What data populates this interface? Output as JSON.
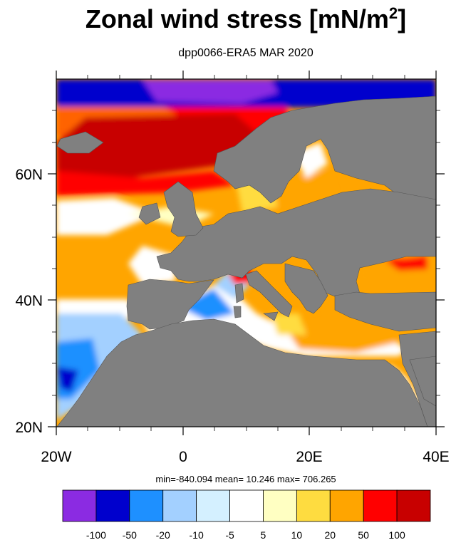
{
  "title": "Zonal wind stress [mN/m",
  "title_sup": "2",
  "title_end": "]",
  "subtitle": "dpp0066-ERA5  MAR 2020",
  "stats": {
    "min_label": "min=",
    "min": "-840.094",
    "mean_label": "mean=",
    "mean": "10.246",
    "max_label": "max=",
    "max": "706.265",
    "text": "min=-840.094  mean=  10.246  max= 706.265"
  },
  "map": {
    "lon_range": [
      -20,
      40
    ],
    "lat_range": [
      20,
      75
    ],
    "x_ticks": [
      {
        "lon": -20,
        "label": "20W"
      },
      {
        "lon": 0,
        "label": "0"
      },
      {
        "lon": 20,
        "label": "20E"
      },
      {
        "lon": 40,
        "label": "40E"
      }
    ],
    "y_ticks": [
      {
        "lat": 20,
        "label": "20N"
      },
      {
        "lat": 40,
        "label": "40N"
      },
      {
        "lat": 60,
        "label": "60N"
      }
    ],
    "land_color": "#808080"
  },
  "colorbar": {
    "colors": [
      "#8b2be2",
      "#0000cd",
      "#1e90ff",
      "#a3d0ff",
      "#d4f0ff",
      "#ffffff",
      "#ffffc2",
      "#fedc40",
      "#ffa500",
      "#ff0000",
      "#c80000"
    ],
    "labels": [
      "-100",
      "-50",
      "-20",
      "-10",
      "-5",
      "5",
      "10",
      "20",
      "50",
      "100"
    ]
  }
}
